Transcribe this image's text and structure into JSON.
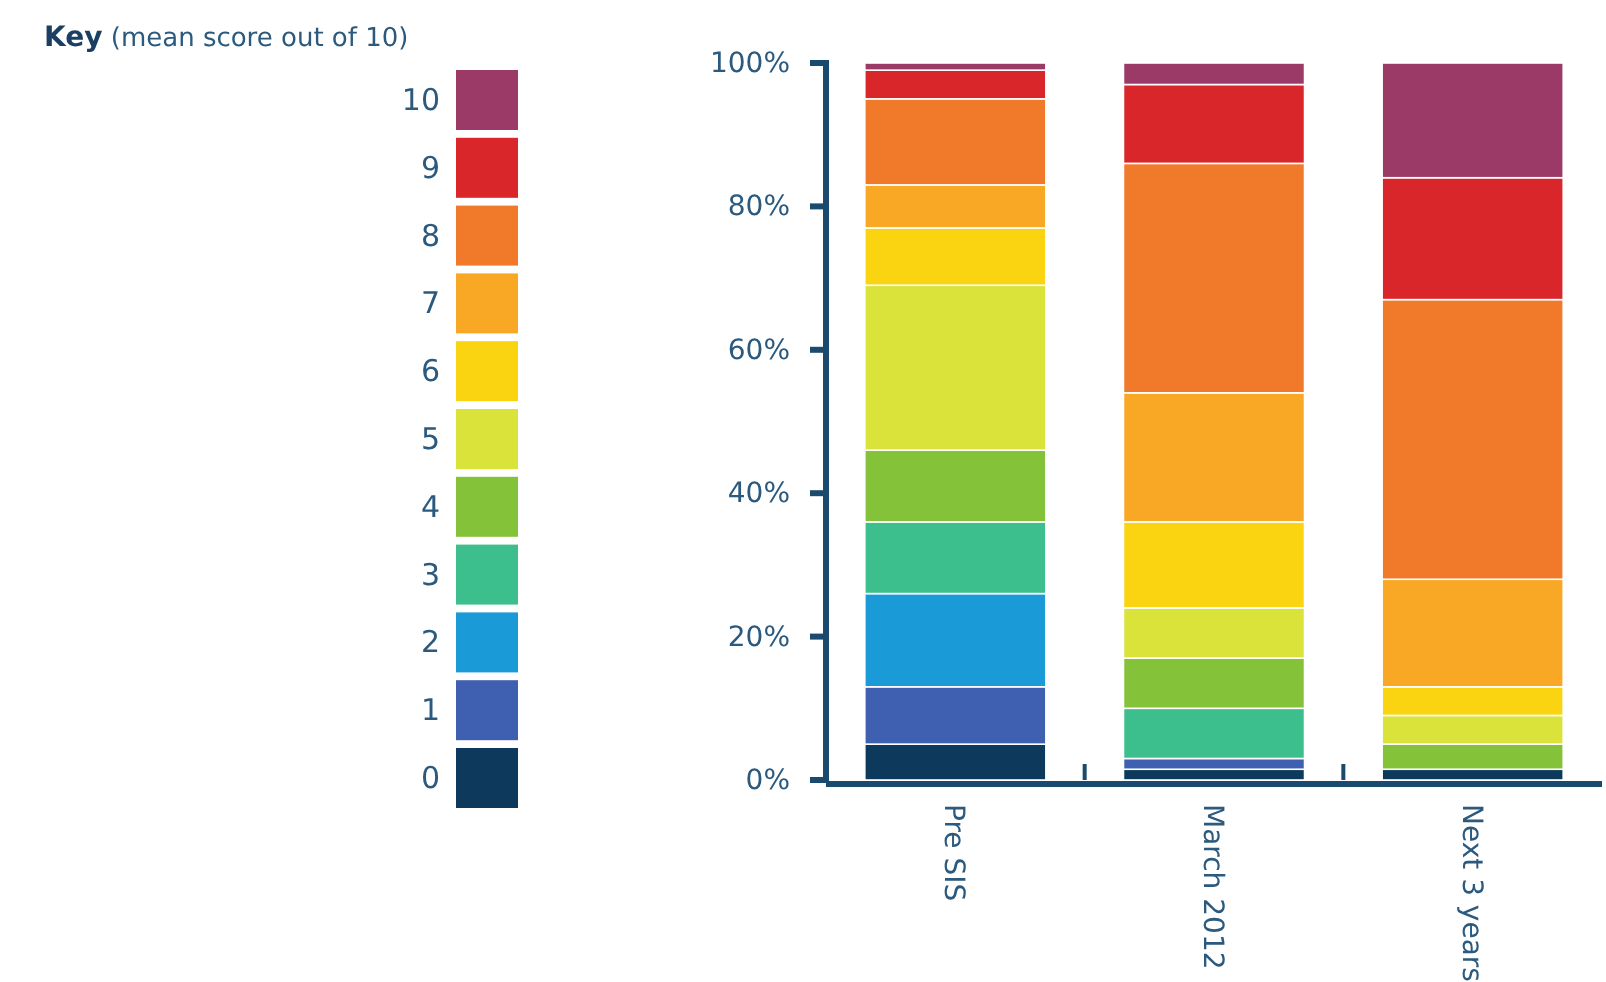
{
  "chart_data": {
    "type": "bar",
    "stacked": true,
    "legend_title": "Key (mean score out of 10)",
    "legend": "left",
    "grid": false,
    "categories": [
      "Pre SIS",
      "March 2012",
      "Next 3 years"
    ],
    "ylim": [
      0,
      100
    ],
    "yticks": [
      {
        "value": 0,
        "label": "0%"
      },
      {
        "value": 20,
        "label": "20%"
      },
      {
        "value": 40,
        "label": "40%"
      },
      {
        "value": 60,
        "label": "60%"
      },
      {
        "value": 80,
        "label": "80%"
      },
      {
        "value": 100,
        "label": "100%"
      }
    ],
    "series": [
      {
        "name": "0",
        "color": "#0d3a5c",
        "values": [
          5,
          1.5,
          1.5
        ]
      },
      {
        "name": "1",
        "color": "#3f5fb0",
        "values": [
          8,
          1.5,
          0
        ]
      },
      {
        "name": "2",
        "color": "#1a9ad6",
        "values": [
          13,
          0,
          0
        ]
      },
      {
        "name": "3",
        "color": "#3cbf8c",
        "values": [
          10,
          7,
          0
        ]
      },
      {
        "name": "4",
        "color": "#84c23a",
        "values": [
          10,
          7,
          3.5
        ]
      },
      {
        "name": "5",
        "color": "#d9e33a",
        "values": [
          23,
          7,
          4
        ]
      },
      {
        "name": "6",
        "color": "#fad411",
        "values": [
          8,
          12,
          4
        ]
      },
      {
        "name": "7",
        "color": "#f9a825",
        "values": [
          6,
          18,
          15
        ]
      },
      {
        "name": "8",
        "color": "#f07a2a",
        "values": [
          12,
          32,
          39
        ]
      },
      {
        "name": "9",
        "color": "#d8262a",
        "values": [
          4,
          11,
          17
        ]
      },
      {
        "name": "10",
        "color": "#9b3a66",
        "values": [
          1,
          3,
          16
        ]
      }
    ]
  }
}
